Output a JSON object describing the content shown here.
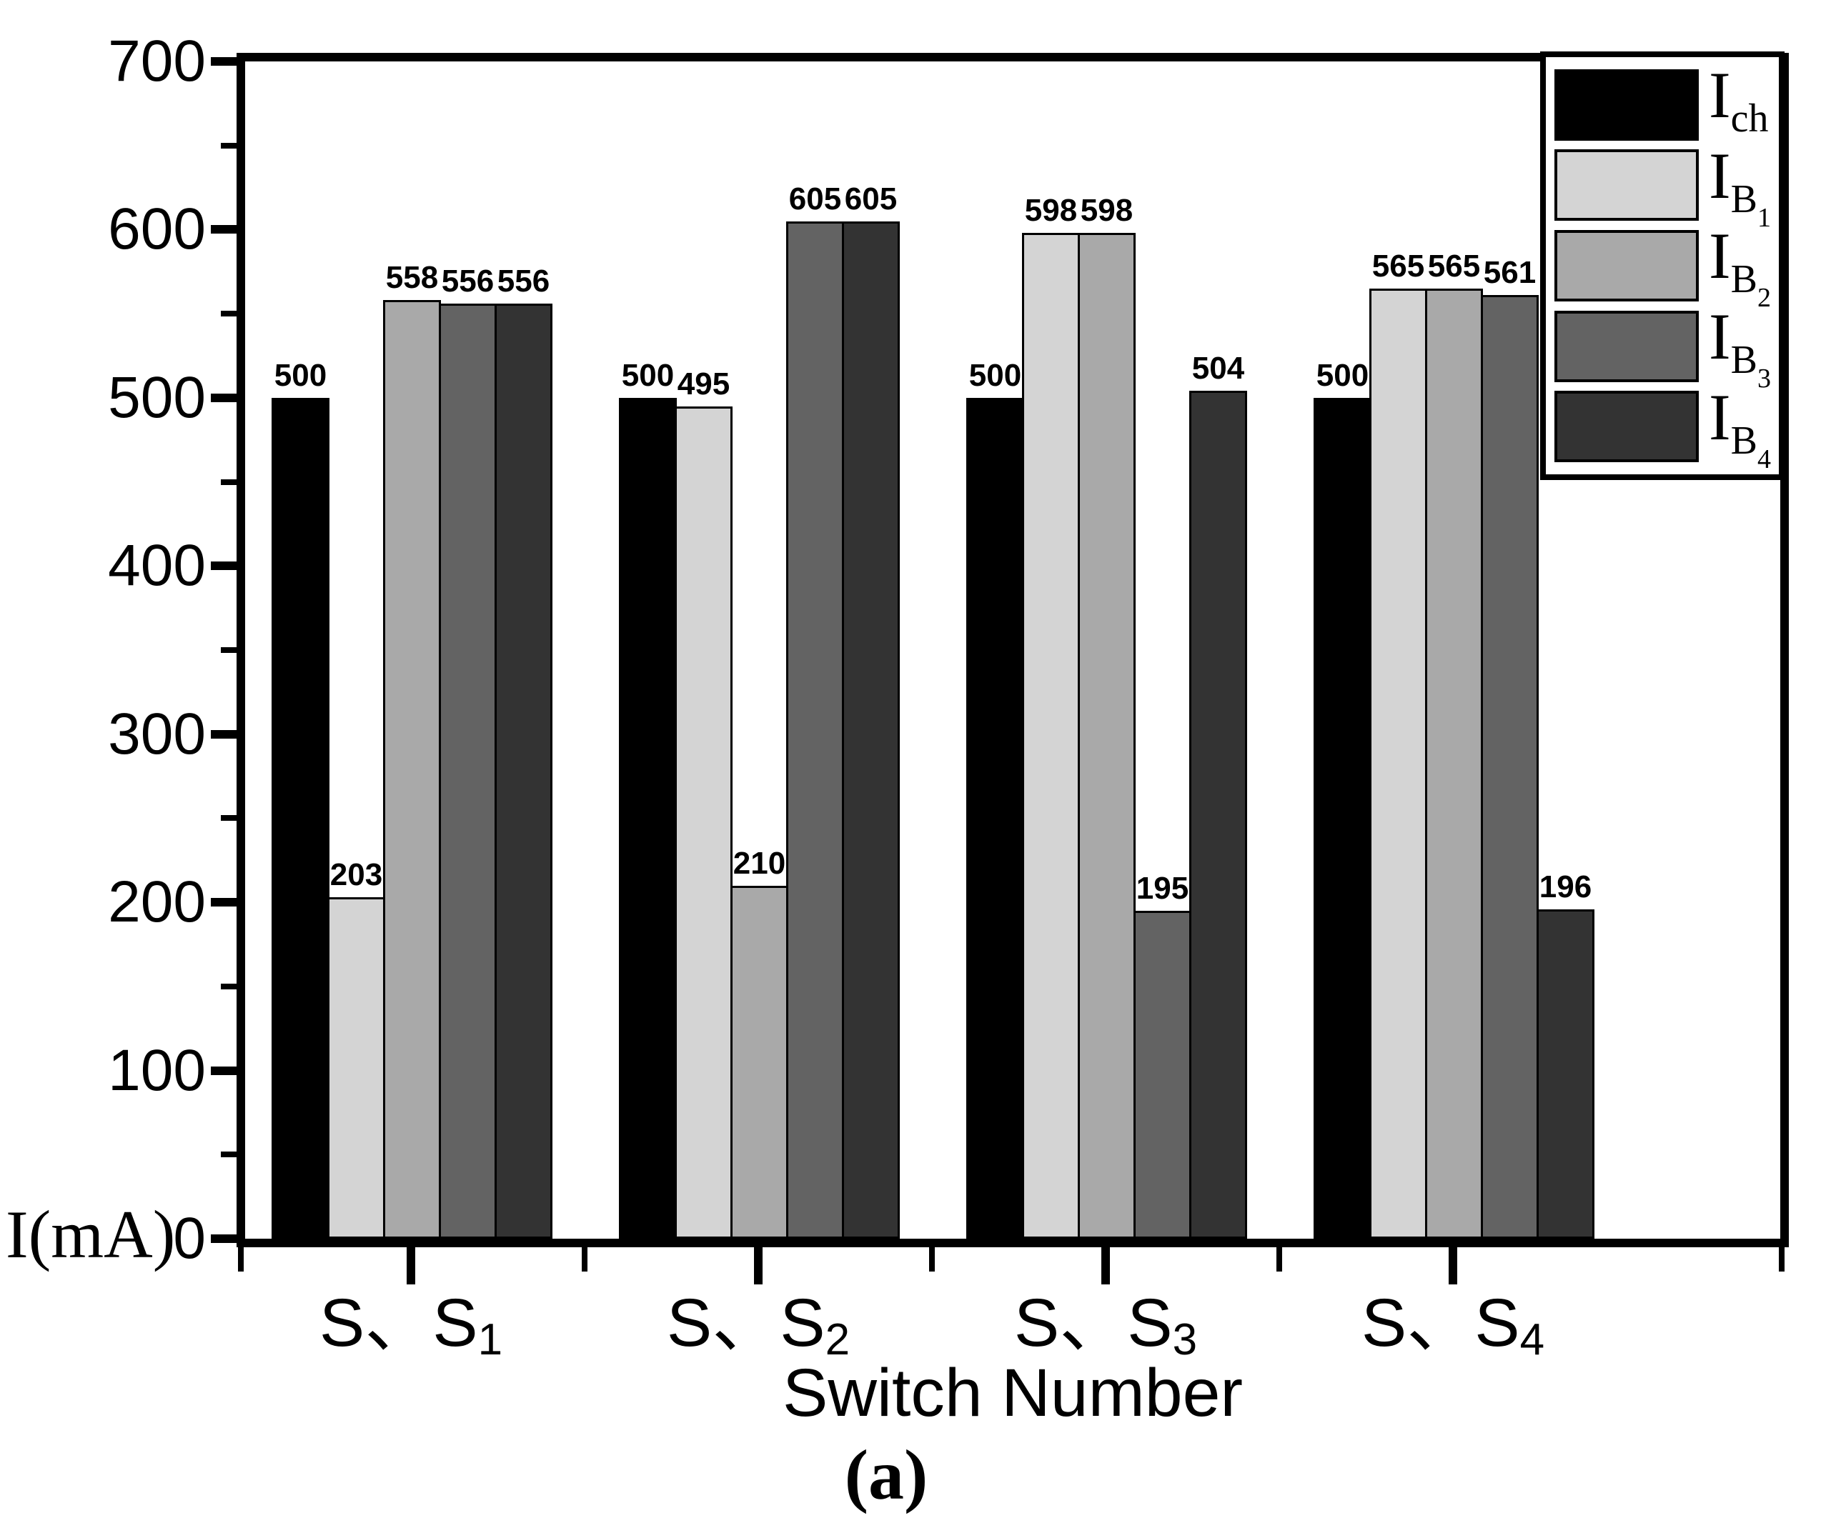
{
  "figure": {
    "caption": "(a)",
    "background": "#ffffff"
  },
  "chart_data": {
    "type": "bar",
    "title": "",
    "xlabel": "Switch Number",
    "ylabel": "I(mA)",
    "ylim": [
      0,
      700
    ],
    "ytick_step": 100,
    "yminor_step": 50,
    "grid": false,
    "axis_color": "#000000",
    "legend_position": "top-right",
    "bar_value_labels_shown": true,
    "categories": [
      {
        "main": "S、S",
        "sub": "1"
      },
      {
        "main": "S、S",
        "sub": "2"
      },
      {
        "main": "S、S",
        "sub": "3"
      },
      {
        "main": "S、S",
        "sub": "4"
      }
    ],
    "series": [
      {
        "id": "Ich",
        "label_base": "I",
        "label_sub": "ch",
        "label_subsub": "",
        "color": "#000000",
        "values": [
          500,
          500,
          500,
          500
        ]
      },
      {
        "id": "IB1",
        "label_base": "I",
        "label_sub": "B",
        "label_subsub": "1",
        "color": "#d4d4d4",
        "values": [
          203,
          495,
          598,
          565
        ]
      },
      {
        "id": "IB2",
        "label_base": "I",
        "label_sub": "B",
        "label_subsub": "2",
        "color": "#a9a9a9",
        "values": [
          558,
          210,
          598,
          565
        ]
      },
      {
        "id": "IB3",
        "label_base": "I",
        "label_sub": "B",
        "label_subsub": "3",
        "color": "#636363",
        "values": [
          556,
          605,
          195,
          561
        ]
      },
      {
        "id": "IB4",
        "label_base": "I",
        "label_sub": "B",
        "label_subsub": "4",
        "color": "#333333",
        "values": [
          556,
          605,
          504,
          196
        ]
      }
    ]
  }
}
